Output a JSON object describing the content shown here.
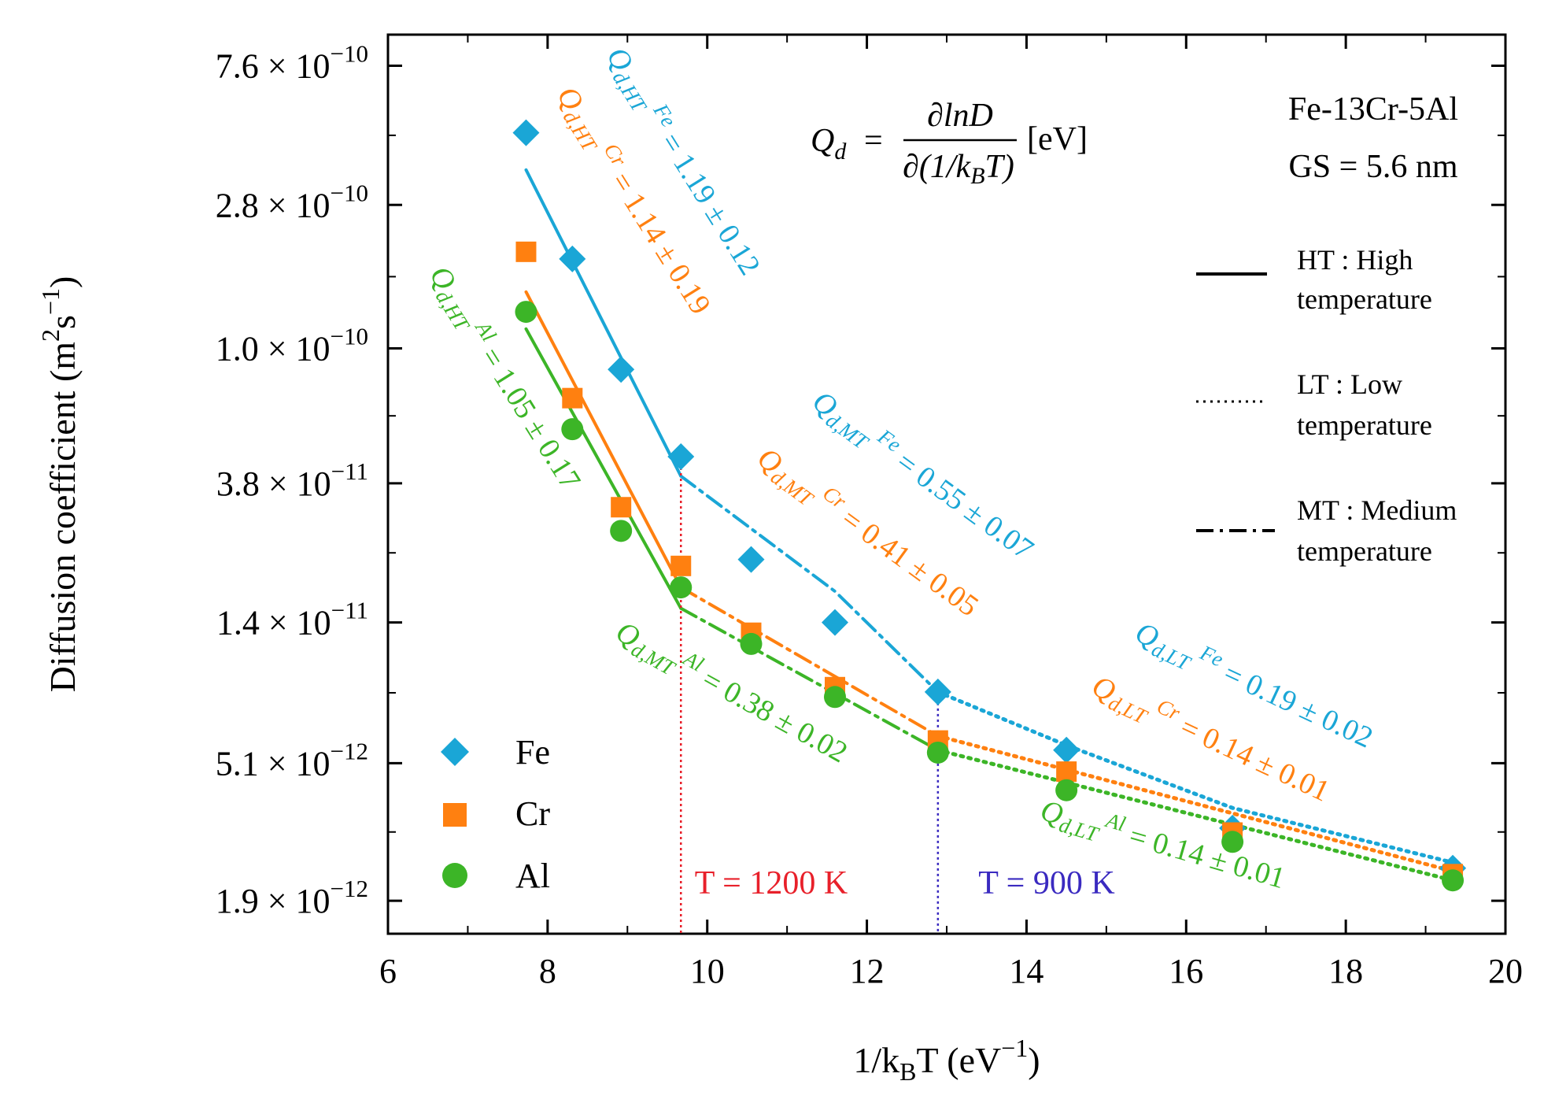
{
  "chart_data": {
    "type": "scatter",
    "xlabel": "1/k_BT (eV⁻¹)",
    "ylabel": "Diffusion coefficient (m²s⁻¹)",
    "xlim": [
      6,
      20
    ],
    "ylim": [
      1.5e-12,
      9.5e-10
    ],
    "y_scale": "log",
    "x_ticks": [
      6,
      8,
      10,
      12,
      14,
      16,
      18,
      20
    ],
    "y_ticks": [
      {
        "value": 7.6e-10,
        "mantissa": "7.6",
        "exp": "−10"
      },
      {
        "value": 2.8e-10,
        "mantissa": "2.8",
        "exp": "−10"
      },
      {
        "value": 1e-10,
        "mantissa": "1.0",
        "exp": "−10"
      },
      {
        "value": 3.8e-11,
        "mantissa": "3.8",
        "exp": "−11"
      },
      {
        "value": 1.4e-11,
        "mantissa": "1.4",
        "exp": "−11"
      },
      {
        "value": 5.1e-12,
        "mantissa": "5.1",
        "exp": "−12"
      },
      {
        "value": 1.9e-12,
        "mantissa": "1.9",
        "exp": "−12"
      }
    ],
    "grid": false,
    "legend_position": "bottom-left",
    "series": [
      {
        "name": "Fe",
        "color": "#1AA6D6",
        "marker": "diamond",
        "x": [
          7.73,
          8.31,
          8.92,
          9.67,
          10.55,
          11.6,
          12.89,
          14.5,
          16.58,
          19.34
        ],
        "y": [
          4.7e-10,
          1.9e-10,
          8.6e-11,
          4.6e-11,
          2.2e-11,
          1.4e-11,
          8.5e-12,
          5.6e-12,
          3.2e-12,
          2.4e-12
        ],
        "fits": [
          {
            "regime": "HT",
            "style": "solid",
            "x": [
              7.73,
              9.67
            ],
            "y": [
              3.6e-10,
              4e-11
            ]
          },
          {
            "regime": "MT",
            "style": "dashdot",
            "x": [
              9.67,
              11.6,
              12.89
            ],
            "y": [
              4e-11,
              1.75e-11,
              8.5e-12
            ]
          },
          {
            "regime": "LT",
            "style": "dotted",
            "x": [
              12.89,
              14.5,
              16.58,
              19.34
            ],
            "y": [
              8.5e-12,
              5.8e-12,
              3.7e-12,
              2.5e-12
            ]
          }
        ]
      },
      {
        "name": "Cr",
        "color": "#FF8010",
        "marker": "square",
        "x": [
          7.73,
          8.31,
          8.92,
          9.67,
          10.55,
          11.6,
          12.89,
          14.5,
          16.58,
          19.34
        ],
        "y": [
          2e-10,
          7e-11,
          3.2e-11,
          2.1e-11,
          1.3e-11,
          8.8e-12,
          6e-12,
          4.8e-12,
          3.1e-12,
          2.3e-12
        ],
        "fits": [
          {
            "regime": "HT",
            "style": "solid",
            "x": [
              7.73,
              9.67
            ],
            "y": [
              1.5e-10,
              1.8e-11
            ]
          },
          {
            "regime": "MT",
            "style": "dashdot",
            "x": [
              9.67,
              12.89
            ],
            "y": [
              1.8e-11,
              6.2e-12
            ]
          },
          {
            "regime": "LT",
            "style": "dotted",
            "x": [
              12.89,
              19.34
            ],
            "y": [
              6.2e-12,
              2.35e-12
            ]
          }
        ]
      },
      {
        "name": "Al",
        "color": "#3CB527",
        "marker": "circle",
        "x": [
          7.73,
          8.31,
          8.92,
          9.67,
          10.55,
          11.6,
          12.89,
          14.5,
          16.58,
          19.34
        ],
        "y": [
          1.3e-10,
          5.6e-11,
          2.7e-11,
          1.8e-11,
          1.2e-11,
          8.2e-12,
          5.5e-12,
          4.2e-12,
          2.9e-12,
          2.2e-12
        ],
        "fits": [
          {
            "regime": "HT",
            "style": "solid",
            "x": [
              7.73,
              9.67
            ],
            "y": [
              1.15e-10,
              1.55e-11
            ]
          },
          {
            "regime": "MT",
            "style": "dashdot",
            "x": [
              9.67,
              12.89
            ],
            "y": [
              1.55e-11,
              5.6e-12
            ]
          },
          {
            "regime": "LT",
            "style": "dotted",
            "x": [
              12.89,
              19.34
            ],
            "y": [
              5.6e-12,
              2.2e-12
            ]
          }
        ]
      }
    ],
    "reference_lines": [
      {
        "x": 9.67,
        "color": "#E8202A",
        "label": "T = 1200 K"
      },
      {
        "x": 12.89,
        "color": "#3A2AC0",
        "label": "T = 900 K"
      }
    ],
    "annotations": [
      {
        "id": "fe-ht",
        "regime": "HT",
        "element": "Fe",
        "value": "= 1.19 ± 0.12",
        "color": "#1AA6D6"
      },
      {
        "id": "cr-ht",
        "regime": "HT",
        "element": "Cr",
        "value": "= 1.14 ± 0.19",
        "color": "#FF8010"
      },
      {
        "id": "al-ht",
        "regime": "HT",
        "element": "Al",
        "value": "= 1.05 ± 0.17",
        "color": "#3CB527"
      },
      {
        "id": "fe-mt",
        "regime": "MT",
        "element": "Fe",
        "value": "= 0.55 ± 0.07",
        "color": "#1AA6D6"
      },
      {
        "id": "cr-mt",
        "regime": "MT",
        "element": "Cr",
        "value": "= 0.41 ± 0.05",
        "color": "#FF8010"
      },
      {
        "id": "al-mt",
        "regime": "MT",
        "element": "Al",
        "value": "= 0.38 ± 0.02",
        "color": "#3CB527"
      },
      {
        "id": "fe-lt",
        "regime": "LT",
        "element": "Fe",
        "value": "= 0.19 ± 0.02",
        "color": "#1AA6D6"
      },
      {
        "id": "cr-lt",
        "regime": "LT",
        "element": "Cr",
        "value": "= 0.14 ± 0.01",
        "color": "#FF8010"
      },
      {
        "id": "al-lt",
        "regime": "LT",
        "element": "Al",
        "value": "= 0.14 ± 0.01",
        "color": "#3CB527"
      }
    ],
    "formula": {
      "lhs": "Q",
      "lhs_sub": "d",
      "equals": "=",
      "numerator": "∂lnD",
      "denominator": "∂(1/k",
      "den_sub": "B",
      "den_tail": "T)",
      "unit": "[eV]"
    },
    "material": "Fe-13Cr-5Al",
    "grain_size": "GS = 5.6 nm",
    "line_legend": [
      {
        "style": "solid",
        "line1": "HT : High",
        "line2": "temperature"
      },
      {
        "style": "dotted",
        "line1": "LT : Low",
        "line2": "temperature"
      },
      {
        "style": "dashdot",
        "line1": "MT : Medium",
        "line2": "temperature"
      }
    ]
  }
}
